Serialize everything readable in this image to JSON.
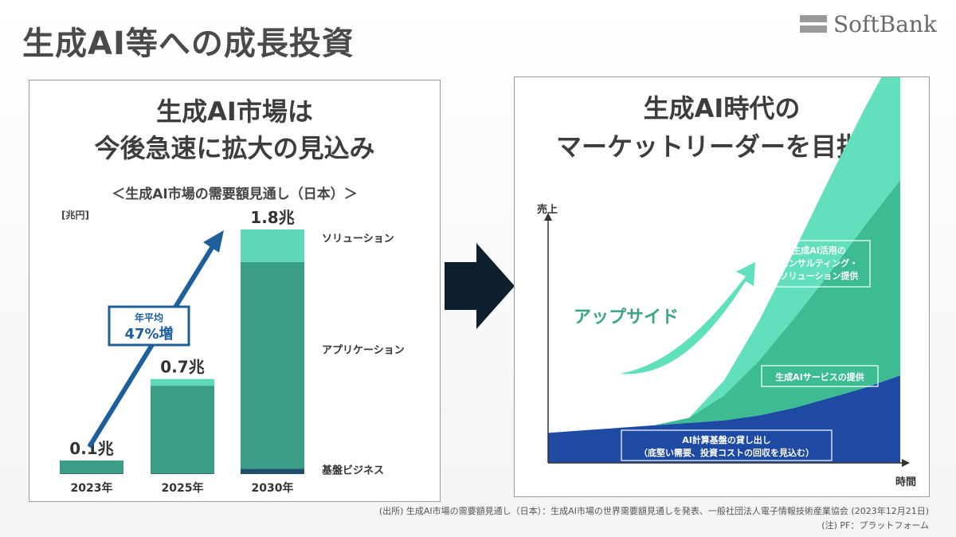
{
  "slide": {
    "title": "生成AI等への成長投資",
    "logo_text": "SoftBank"
  },
  "left_panel": {
    "title_line1": "生成AI市場は",
    "title_line2": "今後急速に拡大の見込み",
    "subtitle": "＜生成AI市場の需要額見通し（日本）＞",
    "unit": "[兆円]",
    "growth_label_line1": "年平均",
    "growth_label_line2": "47%増"
  },
  "chart_data": [
    {
      "type": "bar",
      "stacked": true,
      "title": "＜生成AI市場の需要額見通し（日本）＞",
      "ylabel": "[兆円]",
      "categories": [
        "2023年",
        "2025年",
        "2030年"
      ],
      "totals": [
        0.1,
        0.7,
        1.8
      ],
      "total_labels": [
        "0.1兆",
        "0.7兆",
        "1.8兆"
      ],
      "series": [
        {
          "name": "基盤ビジネス",
          "values": [
            0.005,
            0.005,
            0.04
          ],
          "color": "#1f4e6b"
        },
        {
          "name": "アプリケーション",
          "values": [
            0.095,
            0.645,
            1.52
          ],
          "color": "#3a9e86"
        },
        {
          "name": "ソリューション",
          "values": [
            0.0,
            0.05,
            0.24
          ],
          "color": "#5ed8b8"
        }
      ],
      "annotation": "年平均 47%増",
      "ylim": [
        0,
        1.8
      ]
    },
    {
      "type": "area",
      "stacked": true,
      "title": "生成AI時代の マーケットリーダーを目指す",
      "xlabel": "時間",
      "ylabel": "売上",
      "x": [
        0,
        0.1,
        0.2,
        0.3,
        0.4,
        0.5,
        0.6,
        0.7,
        0.8,
        0.9,
        1.0
      ],
      "series": [
        {
          "name": "AI計算基盤の貸し出し（底堅い需要、投資コストの回収を見込む）",
          "values": [
            0.12,
            0.13,
            0.14,
            0.15,
            0.16,
            0.17,
            0.19,
            0.22,
            0.26,
            0.3,
            0.35
          ],
          "color": "#1e4aa3"
        },
        {
          "name": "生成AIサービスの提供",
          "values": [
            0,
            0,
            0,
            0,
            0.02,
            0.1,
            0.22,
            0.36,
            0.5,
            0.65,
            0.78
          ],
          "color": "#3dbc93"
        },
        {
          "name": "生成AI活用のコンサルティング・ソリューション提供",
          "values": [
            0,
            0,
            0,
            0,
            0,
            0.06,
            0.16,
            0.27,
            0.38,
            0.47,
            0.55
          ],
          "color": "#62e0bd"
        }
      ],
      "annotation": "アップサイド"
    }
  ],
  "right_panel": {
    "title_line1": "生成AI時代の",
    "title_line2": "マーケットリーダーを目指す",
    "ylabel": "売上",
    "xlabel": "時間",
    "upside": "アップサイド",
    "consulting_line1": "生成AI活用の",
    "consulting_line2": "コンサルティング・",
    "consulting_line3": "ソリューション提供",
    "service_label": "生成AIサービスの提供",
    "infra_line1": "AI計算基盤の貸し出し",
    "infra_line2": "（底堅い需要、投資コストの回収を見込む）"
  },
  "footer": {
    "source": "(出所) 生成AI市場の需要額見通し（日本）：生成AI市場の世界需要額見通しを発表、一般社団法人電子情報技術産業協会 (2023年12月21日)",
    "note": "(注) PF：プラットフォーム"
  }
}
